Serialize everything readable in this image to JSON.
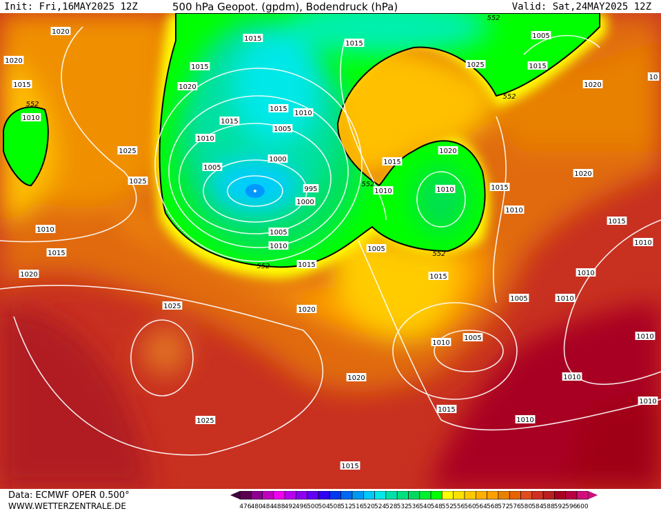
{
  "header": {
    "init": "Init: Fri,16MAY2025 12Z",
    "title": "500 hPa Geopot. (gpdm), Bodendruck (hPa)",
    "valid": "Valid: Sat,24MAY2025 12Z"
  },
  "footer": {
    "data_source": "Data: ECMWF OPER 0.500°",
    "website": "WWW.WETTERZENTRALE.DE"
  },
  "legend": {
    "labels": [
      "476",
      "480",
      "484",
      "488",
      "492",
      "496",
      "500",
      "504",
      "508",
      "512",
      "516",
      "520",
      "524",
      "528",
      "532",
      "536",
      "540",
      "548",
      "552",
      "556",
      "560",
      "564",
      "568",
      "572",
      "576",
      "580",
      "584",
      "588",
      "592",
      "596",
      "600"
    ],
    "colors": [
      "#5a0050",
      "#8c0090",
      "#c000c0",
      "#f000f0",
      "#b800f0",
      "#8c00f0",
      "#6000f0",
      "#3000f0",
      "#0038f0",
      "#0068f0",
      "#0098f0",
      "#00c8f8",
      "#00e8e8",
      "#00e0a8",
      "#00e080",
      "#00d860",
      "#00f030",
      "#00ff00",
      "#ffff00",
      "#ffe000",
      "#ffc800",
      "#ffb000",
      "#ffa000",
      "#e88000",
      "#e86000",
      "#e04c20",
      "#d03020",
      "#b82020",
      "#a80020",
      "#b80040",
      "#d0107a"
    ],
    "low_end_color": "#400040",
    "high_end_color": "#d0107a"
  },
  "map": {
    "contour_552_label": "552",
    "low_center_marker": "L",
    "isobar_labels": [
      "1020",
      "1020",
      "1015",
      "552",
      "1010",
      "1025",
      "1025",
      "1010",
      "1015",
      "1020",
      "1025",
      "1020",
      "1020",
      "1025",
      "1015",
      "1015",
      "1015",
      "1020",
      "1015",
      "1010",
      "1015",
      "1005",
      "1010",
      "1000",
      "1005",
      "995",
      "1000",
      "1005",
      "1010",
      "552",
      "1015",
      "1015",
      "1025",
      "1015",
      "552",
      "1005",
      "552",
      "1020",
      "1020",
      "1015",
      "552",
      "1010",
      "1010",
      "1015",
      "1010",
      "1020",
      "1015",
      "1010",
      "1005",
      "552",
      "1015",
      "1010",
      "1005",
      "1010",
      "1010",
      "1005",
      "1010",
      "1010",
      "1015",
      "1010",
      "1010",
      "10"
    ]
  }
}
